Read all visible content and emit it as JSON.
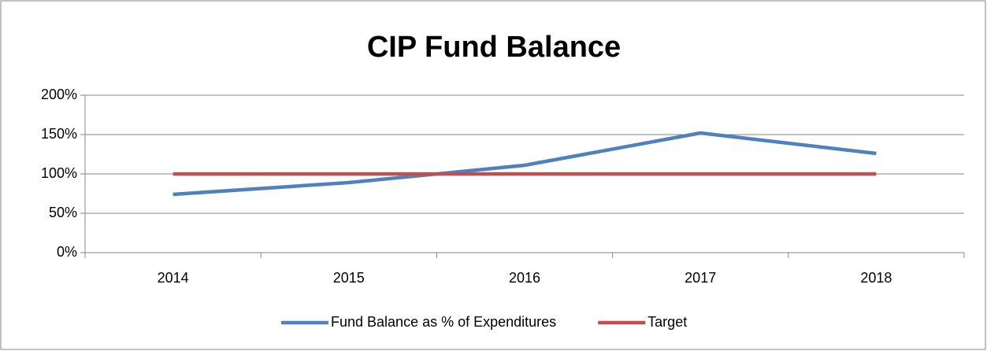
{
  "chart_data": {
    "type": "line",
    "title": "CIP Fund Balance",
    "categories": [
      "2014",
      "2015",
      "2016",
      "2017",
      "2018"
    ],
    "series": [
      {
        "name": "Fund Balance as % of Expenditures",
        "color": "#4f81bd",
        "values": [
          74,
          89,
          111,
          152,
          126
        ]
      },
      {
        "name": "Target",
        "color": "#c0504d",
        "values": [
          100,
          100,
          100,
          100,
          100
        ]
      }
    ],
    "ylim": [
      0,
      200
    ],
    "yticks": [
      {
        "value": 0,
        "label": "0%"
      },
      {
        "value": 50,
        "label": "50%"
      },
      {
        "value": 100,
        "label": "100%"
      },
      {
        "value": 150,
        "label": "150%"
      },
      {
        "value": 200,
        "label": "200%"
      }
    ],
    "grid": true,
    "legend": "bottom"
  }
}
